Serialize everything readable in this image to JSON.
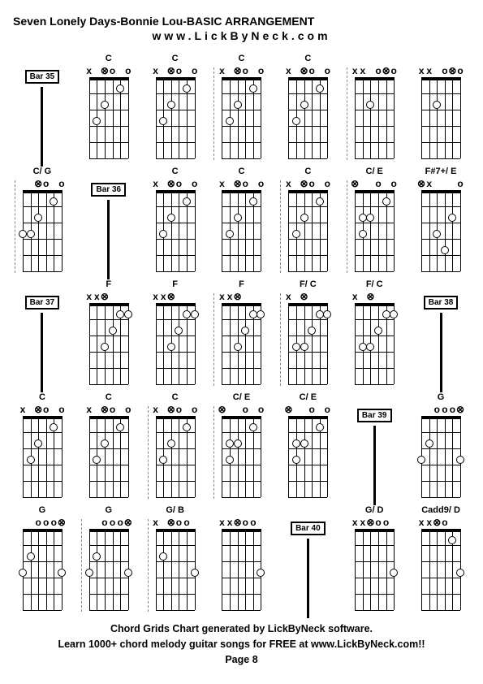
{
  "title": "Seven Lonely Days-Bonnie Lou-BASIC ARRANGEMENT",
  "subtitle": "www.LickByNeck.com",
  "footer": {
    "line1": "Chord Grids Chart generated by LickByNeck software.",
    "line2": "Learn 1000+ chord melody guitar songs for FREE at www.LickByNeck.com!!",
    "line3": "Page 8"
  },
  "num_strings": 6,
  "num_frets": 5,
  "diagram_width": 48,
  "diagram_height": 100,
  "rows": [
    [
      {
        "type": "bar",
        "label": "Bar 35"
      },
      {
        "type": "chord",
        "name": "C",
        "top": [
          "x",
          "",
          "⊗",
          "o",
          "",
          "o"
        ],
        "dots": [
          {
            "s": 1,
            "f": 1,
            "hollow": true
          },
          {
            "s": 3,
            "f": 2,
            "hollow": true
          },
          {
            "s": 4,
            "f": 3,
            "hollow": true
          }
        ]
      },
      {
        "type": "chord",
        "name": "C",
        "top": [
          "x",
          "",
          "⊗",
          "o",
          "",
          "o"
        ],
        "dots": [
          {
            "s": 1,
            "f": 1,
            "hollow": true
          },
          {
            "s": 3,
            "f": 2,
            "hollow": true
          },
          {
            "s": 4,
            "f": 3,
            "hollow": true
          }
        ]
      },
      {
        "type": "chord",
        "name": "C",
        "tickLeft": true,
        "top": [
          "x",
          "",
          "⊗",
          "o",
          "",
          "o"
        ],
        "dots": [
          {
            "s": 1,
            "f": 1,
            "hollow": true
          },
          {
            "s": 3,
            "f": 2,
            "hollow": true
          },
          {
            "s": 4,
            "f": 3,
            "hollow": true
          }
        ]
      },
      {
        "type": "chord",
        "name": "C",
        "top": [
          "x",
          "",
          "⊗",
          "o",
          "",
          "o"
        ],
        "dots": [
          {
            "s": 1,
            "f": 1,
            "hollow": true
          },
          {
            "s": 3,
            "f": 2,
            "hollow": true
          },
          {
            "s": 4,
            "f": 3,
            "hollow": true
          }
        ]
      },
      {
        "type": "chord",
        "name": "",
        "tickLeft": true,
        "top": [
          "x",
          "x",
          "",
          "o",
          "⊗",
          "o"
        ],
        "dots": [
          {
            "s": 3,
            "f": 2,
            "hollow": true
          }
        ]
      },
      {
        "type": "chord",
        "name": "",
        "top": [
          "x",
          "x",
          "",
          "o",
          "⊗",
          "o"
        ],
        "dots": [
          {
            "s": 3,
            "f": 2,
            "hollow": true
          }
        ]
      }
    ],
    [
      {
        "type": "chord",
        "name": "C/ G",
        "tickLeft": true,
        "top": [
          "",
          "",
          "⊗",
          "o",
          "",
          "o"
        ],
        "dots": [
          {
            "s": 1,
            "f": 1,
            "hollow": true
          },
          {
            "s": 3,
            "f": 2,
            "hollow": true
          },
          {
            "s": 5,
            "f": 3,
            "hollow": true
          },
          {
            "s": 4,
            "f": 3,
            "hollow": true
          }
        ]
      },
      {
        "type": "bar",
        "label": "Bar 36"
      },
      {
        "type": "chord",
        "name": "C",
        "top": [
          "x",
          "",
          "⊗",
          "o",
          "",
          "o"
        ],
        "dots": [
          {
            "s": 1,
            "f": 1,
            "hollow": true
          },
          {
            "s": 3,
            "f": 2,
            "hollow": true
          },
          {
            "s": 4,
            "f": 3,
            "hollow": true
          }
        ]
      },
      {
        "type": "chord",
        "name": "C",
        "top": [
          "x",
          "",
          "⊗",
          "o",
          "",
          "o"
        ],
        "dots": [
          {
            "s": 1,
            "f": 1,
            "hollow": true
          },
          {
            "s": 3,
            "f": 2,
            "hollow": true
          },
          {
            "s": 4,
            "f": 3,
            "hollow": true
          }
        ]
      },
      {
        "type": "chord",
        "name": "C",
        "tickLeft": true,
        "top": [
          "x",
          "",
          "⊗",
          "o",
          "",
          "o"
        ],
        "dots": [
          {
            "s": 1,
            "f": 1,
            "hollow": true
          },
          {
            "s": 3,
            "f": 2,
            "hollow": true
          },
          {
            "s": 4,
            "f": 3,
            "hollow": true
          }
        ]
      },
      {
        "type": "chord",
        "name": "C/ E",
        "tickLeft": true,
        "top": [
          "⊗",
          "",
          "",
          "o",
          "",
          "o"
        ],
        "dots": [
          {
            "s": 1,
            "f": 1,
            "hollow": true
          },
          {
            "s": 3,
            "f": 2,
            "hollow": true
          },
          {
            "s": 4,
            "f": 2,
            "hollow": true
          },
          {
            "s": 4,
            "f": 3,
            "hollow": true
          }
        ]
      },
      {
        "type": "chord",
        "name": "F#7+/ E",
        "top": [
          "⊗",
          "x",
          "",
          "",
          "",
          "o"
        ],
        "dots": [
          {
            "s": 1,
            "f": 2,
            "hollow": true
          },
          {
            "s": 3,
            "f": 3,
            "hollow": true
          },
          {
            "s": 2,
            "f": 4,
            "hollow": true
          }
        ]
      }
    ],
    [
      {
        "type": "bar",
        "label": "Bar 37"
      },
      {
        "type": "chord",
        "name": "F",
        "top": [
          "x",
          "x",
          "⊗",
          "",
          "",
          ""
        ],
        "dots": [
          {
            "s": 0,
            "f": 1,
            "hollow": true
          },
          {
            "s": 1,
            "f": 1,
            "hollow": true
          },
          {
            "s": 2,
            "f": 2,
            "hollow": true
          },
          {
            "s": 3,
            "f": 3,
            "hollow": true
          }
        ]
      },
      {
        "type": "chord",
        "name": "F",
        "top": [
          "x",
          "x",
          "⊗",
          "",
          "",
          ""
        ],
        "dots": [
          {
            "s": 0,
            "f": 1,
            "hollow": true
          },
          {
            "s": 1,
            "f": 1,
            "hollow": true
          },
          {
            "s": 2,
            "f": 2,
            "hollow": true
          },
          {
            "s": 3,
            "f": 3,
            "hollow": true
          }
        ]
      },
      {
        "type": "chord",
        "name": "F",
        "tickLeft": true,
        "top": [
          "x",
          "x",
          "⊗",
          "",
          "",
          ""
        ],
        "dots": [
          {
            "s": 0,
            "f": 1,
            "hollow": true
          },
          {
            "s": 1,
            "f": 1,
            "hollow": true
          },
          {
            "s": 2,
            "f": 2,
            "hollow": true
          },
          {
            "s": 3,
            "f": 3,
            "hollow": true
          }
        ]
      },
      {
        "type": "chord",
        "name": "F/ C",
        "tickLeft": true,
        "top": [
          "x",
          "",
          "⊗",
          "",
          "",
          ""
        ],
        "dots": [
          {
            "s": 0,
            "f": 1,
            "hollow": true
          },
          {
            "s": 1,
            "f": 1,
            "hollow": true
          },
          {
            "s": 2,
            "f": 2,
            "hollow": true
          },
          {
            "s": 4,
            "f": 3,
            "hollow": true
          },
          {
            "s": 3,
            "f": 3,
            "hollow": true
          }
        ]
      },
      {
        "type": "chord",
        "name": "F/ C",
        "top": [
          "x",
          "",
          "⊗",
          "",
          "",
          ""
        ],
        "dots": [
          {
            "s": 0,
            "f": 1,
            "hollow": true
          },
          {
            "s": 1,
            "f": 1,
            "hollow": true
          },
          {
            "s": 2,
            "f": 2,
            "hollow": true
          },
          {
            "s": 4,
            "f": 3,
            "hollow": true
          },
          {
            "s": 3,
            "f": 3,
            "hollow": true
          }
        ]
      },
      {
        "type": "bar",
        "label": "Bar 38"
      }
    ],
    [
      {
        "type": "chord",
        "name": "C",
        "top": [
          "x",
          "",
          "⊗",
          "o",
          "",
          "o"
        ],
        "dots": [
          {
            "s": 1,
            "f": 1,
            "hollow": true
          },
          {
            "s": 3,
            "f": 2,
            "hollow": true
          },
          {
            "s": 4,
            "f": 3,
            "hollow": true
          }
        ]
      },
      {
        "type": "chord",
        "name": "C",
        "top": [
          "x",
          "",
          "⊗",
          "o",
          "",
          "o"
        ],
        "dots": [
          {
            "s": 1,
            "f": 1,
            "hollow": true
          },
          {
            "s": 3,
            "f": 2,
            "hollow": true
          },
          {
            "s": 4,
            "f": 3,
            "hollow": true
          }
        ]
      },
      {
        "type": "chord",
        "name": "C",
        "tickLeft": true,
        "top": [
          "x",
          "",
          "⊗",
          "o",
          "",
          "o"
        ],
        "dots": [
          {
            "s": 1,
            "f": 1,
            "hollow": true
          },
          {
            "s": 3,
            "f": 2,
            "hollow": true
          },
          {
            "s": 4,
            "f": 3,
            "hollow": true
          }
        ]
      },
      {
        "type": "chord",
        "name": "C/ E",
        "tickLeft": true,
        "top": [
          "⊗",
          "",
          "",
          "o",
          "",
          "o"
        ],
        "dots": [
          {
            "s": 1,
            "f": 1,
            "hollow": true
          },
          {
            "s": 3,
            "f": 2,
            "hollow": true
          },
          {
            "s": 4,
            "f": 2,
            "hollow": true
          },
          {
            "s": 4,
            "f": 3,
            "hollow": true
          }
        ]
      },
      {
        "type": "chord",
        "name": "C/ E",
        "top": [
          "⊗",
          "",
          "",
          "o",
          "",
          "o"
        ],
        "dots": [
          {
            "s": 1,
            "f": 1,
            "hollow": true
          },
          {
            "s": 3,
            "f": 2,
            "hollow": true
          },
          {
            "s": 4,
            "f": 2,
            "hollow": true
          },
          {
            "s": 4,
            "f": 3,
            "hollow": true
          }
        ]
      },
      {
        "type": "bar",
        "label": "Bar 39"
      },
      {
        "type": "chord",
        "name": "G",
        "top": [
          "",
          "",
          "o",
          "o",
          "o",
          "⊗"
        ],
        "dots": [
          {
            "s": 4,
            "f": 2,
            "hollow": true
          },
          {
            "s": 5,
            "f": 3,
            "hollow": true
          },
          {
            "s": 0,
            "f": 3,
            "hollow": true
          }
        ]
      }
    ],
    [
      {
        "type": "chord",
        "name": "G",
        "top": [
          "",
          "",
          "o",
          "o",
          "o",
          "⊗"
        ],
        "dots": [
          {
            "s": 4,
            "f": 2,
            "hollow": true
          },
          {
            "s": 5,
            "f": 3,
            "hollow": true
          },
          {
            "s": 0,
            "f": 3,
            "hollow": true
          }
        ]
      },
      {
        "type": "chord",
        "name": "G",
        "tickLeft": true,
        "top": [
          "",
          "",
          "o",
          "o",
          "o",
          "⊗"
        ],
        "dots": [
          {
            "s": 4,
            "f": 2,
            "hollow": true
          },
          {
            "s": 5,
            "f": 3,
            "hollow": true
          },
          {
            "s": 0,
            "f": 3,
            "hollow": true
          }
        ]
      },
      {
        "type": "chord",
        "name": "G/ B",
        "tickLeft": true,
        "top": [
          "x",
          "",
          "⊗",
          "o",
          "o",
          ""
        ],
        "dots": [
          {
            "s": 4,
            "f": 2,
            "hollow": true
          },
          {
            "s": 0,
            "f": 3,
            "hollow": true
          }
        ]
      },
      {
        "type": "chord",
        "name": "",
        "top": [
          "x",
          "x",
          "⊗",
          "o",
          "o",
          ""
        ],
        "dots": [
          {
            "s": 0,
            "f": 3,
            "hollow": true
          }
        ]
      },
      {
        "type": "bar",
        "label": "Bar 40"
      },
      {
        "type": "chord",
        "name": "G/ D",
        "top": [
          "x",
          "x",
          "⊗",
          "o",
          "o",
          ""
        ],
        "dots": [
          {
            "s": 0,
            "f": 3,
            "hollow": true
          }
        ]
      },
      {
        "type": "chord",
        "name": "Cadd9/ D",
        "top": [
          "x",
          "x",
          "⊗",
          "o",
          "",
          ""
        ],
        "dots": [
          {
            "s": 1,
            "f": 1,
            "hollow": true
          },
          {
            "s": 0,
            "f": 3,
            "hollow": true
          }
        ]
      }
    ]
  ]
}
